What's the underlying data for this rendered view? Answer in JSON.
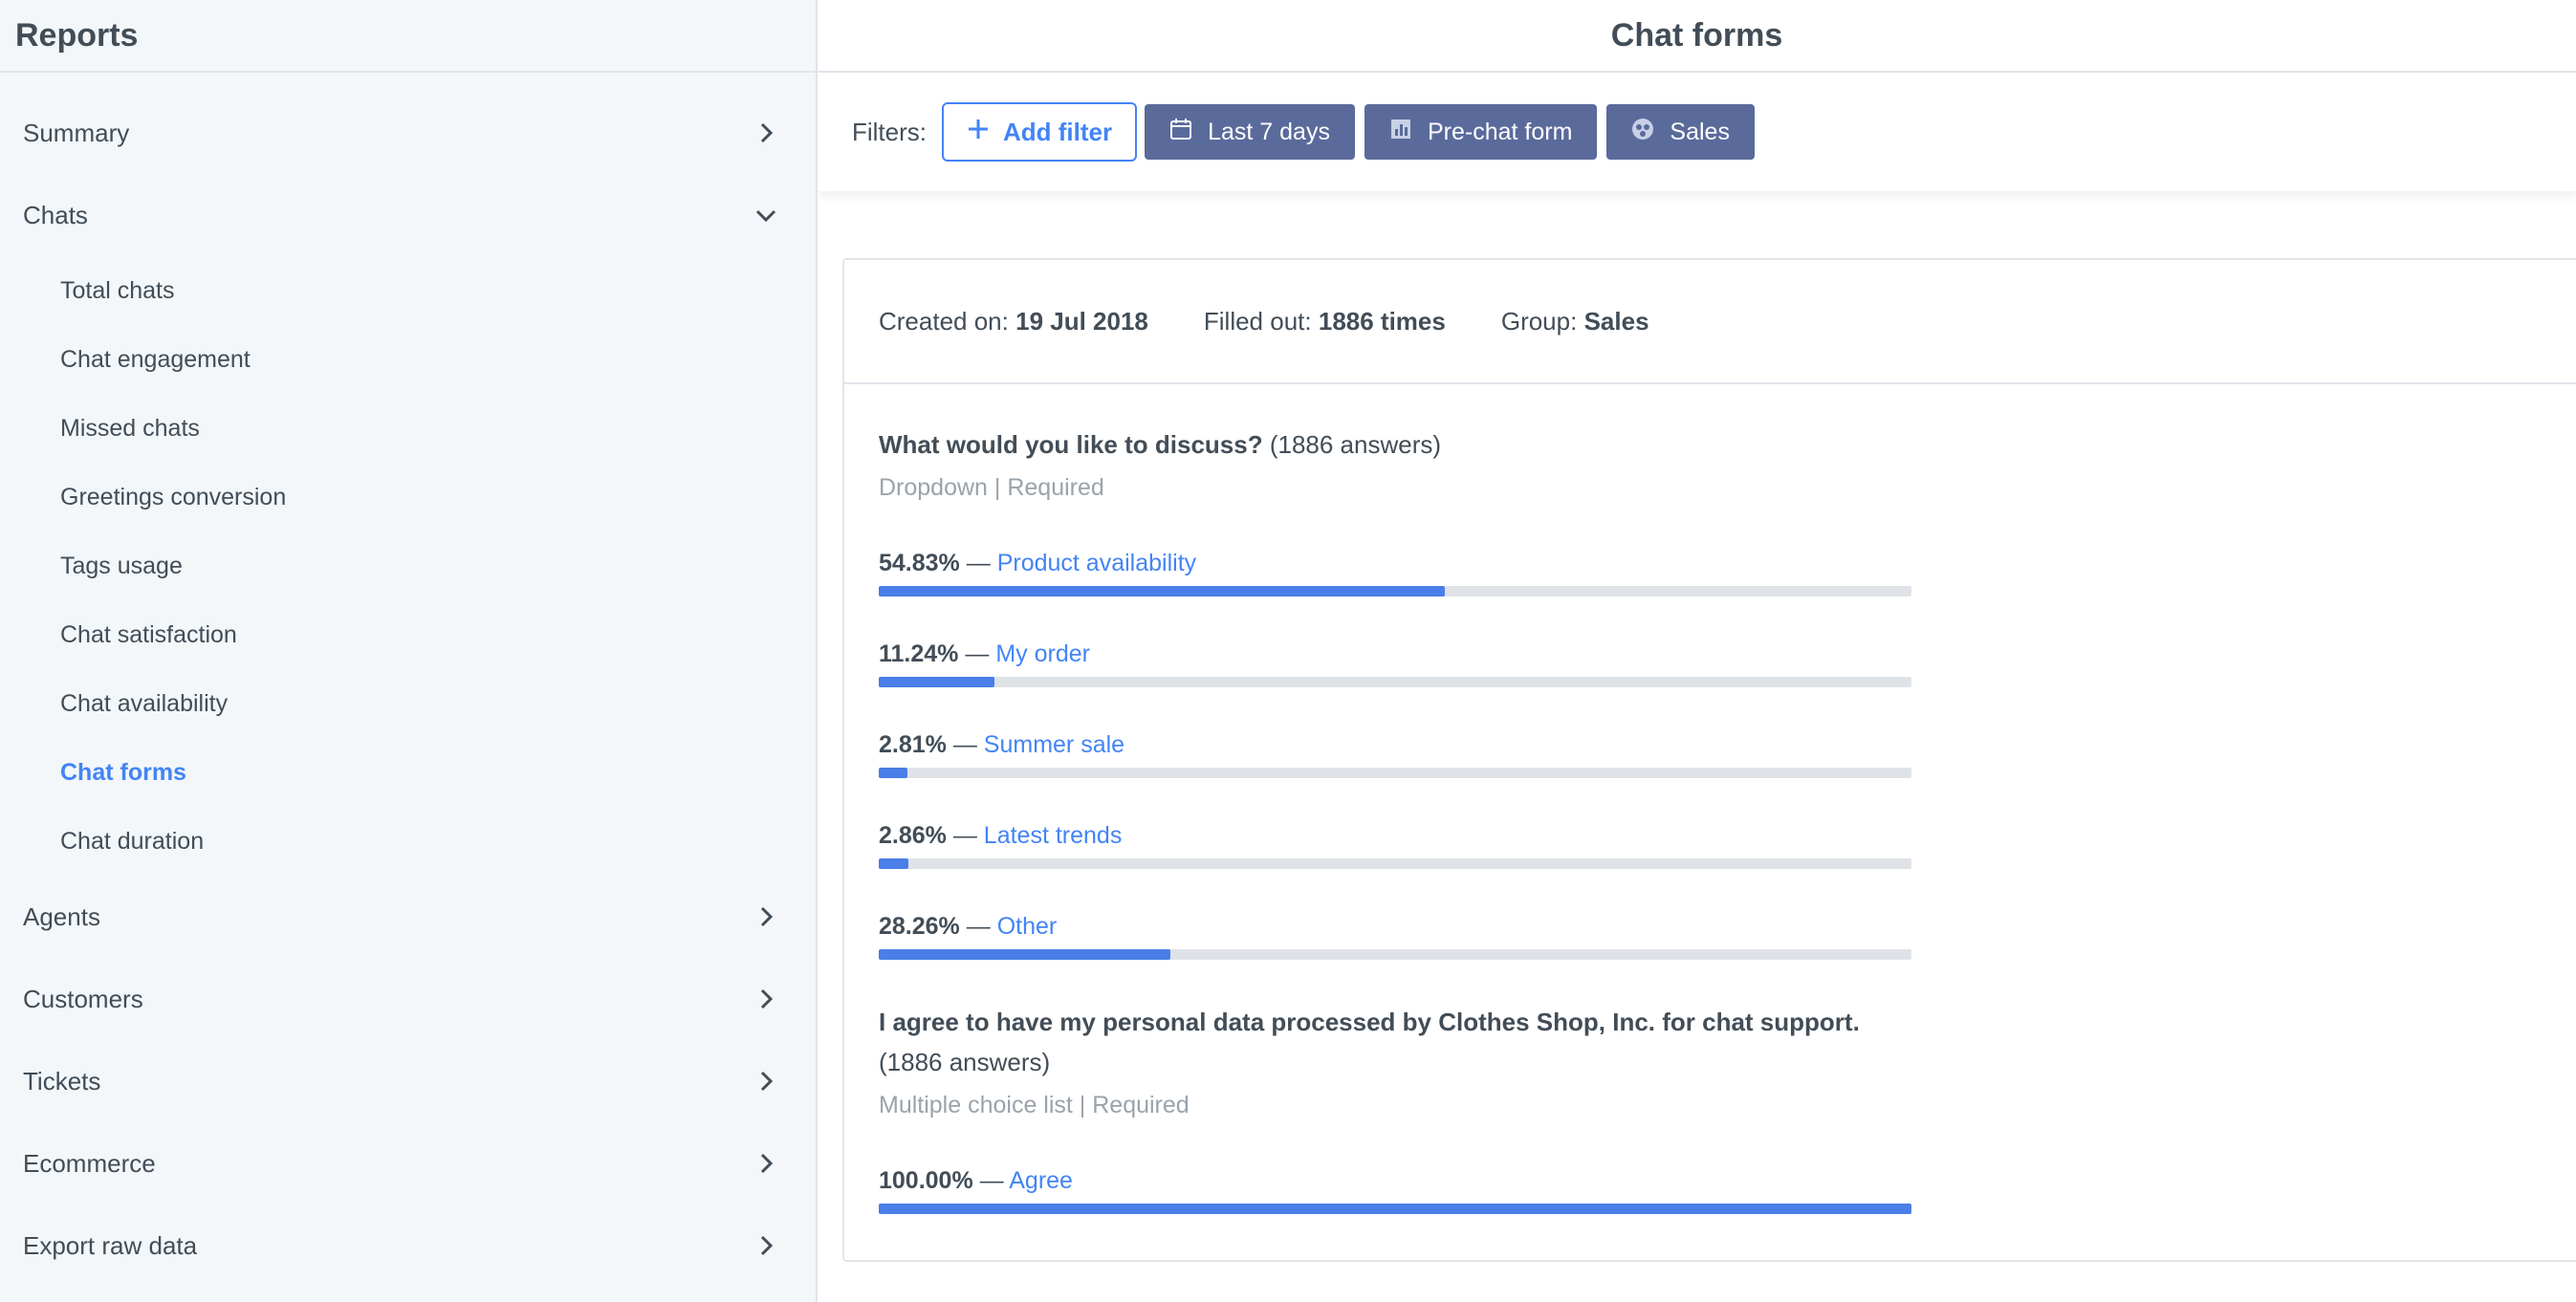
{
  "sidebar": {
    "title": "Reports",
    "items": [
      {
        "label": "Summary"
      },
      {
        "label": "Chats"
      },
      {
        "label": "Agents"
      },
      {
        "label": "Customers"
      },
      {
        "label": "Tickets"
      },
      {
        "label": "Ecommerce"
      },
      {
        "label": "Export raw data"
      }
    ],
    "chats_sub": [
      {
        "label": "Total chats"
      },
      {
        "label": "Chat engagement"
      },
      {
        "label": "Missed chats"
      },
      {
        "label": "Greetings conversion"
      },
      {
        "label": "Tags usage"
      },
      {
        "label": "Chat satisfaction"
      },
      {
        "label": "Chat availability"
      },
      {
        "label": "Chat forms"
      },
      {
        "label": "Chat duration"
      }
    ]
  },
  "main": {
    "title": "Chat forms",
    "filters": {
      "label": "Filters:",
      "add_filter": "Add filter",
      "chips": [
        {
          "label": "Last 7 days",
          "icon": "calendar-icon"
        },
        {
          "label": "Pre-chat form",
          "icon": "chart-icon"
        },
        {
          "label": "Sales",
          "icon": "group-icon"
        }
      ]
    },
    "meta": {
      "created_label": "Created on:",
      "created_value": "19 Jul 2018",
      "filled_label": "Filled out:",
      "filled_value": "1886 times",
      "group_label": "Group:",
      "group_value": "Sales"
    },
    "questions": [
      {
        "title": "What would you like to discuss?",
        "count": "(1886 answers)",
        "meta": "Dropdown | Required",
        "answers": [
          {
            "pct_text": "54.83%",
            "label": "Product availability",
            "value": 54.83
          },
          {
            "pct_text": "11.24%",
            "label": "My order",
            "value": 11.24
          },
          {
            "pct_text": "2.81%",
            "label": "Summer sale",
            "value": 2.81
          },
          {
            "pct_text": "2.86%",
            "label": "Latest trends",
            "value": 2.86
          },
          {
            "pct_text": "28.26%",
            "label": "Other",
            "value": 28.26
          }
        ]
      },
      {
        "title": "I agree to have my personal data processed by Clothes Shop, Inc. for chat support.",
        "count": "(1886 answers)",
        "meta": "Multiple choice list | Required",
        "answers": [
          {
            "pct_text": "100.00%",
            "label": "Agree",
            "value": 100
          }
        ]
      }
    ],
    "dash": "—"
  },
  "colors": {
    "accent": "#4384f5",
    "chip": "#5a6a9b",
    "bar_fill": "#4a7ee8",
    "bar_track": "#dfe3e7"
  }
}
